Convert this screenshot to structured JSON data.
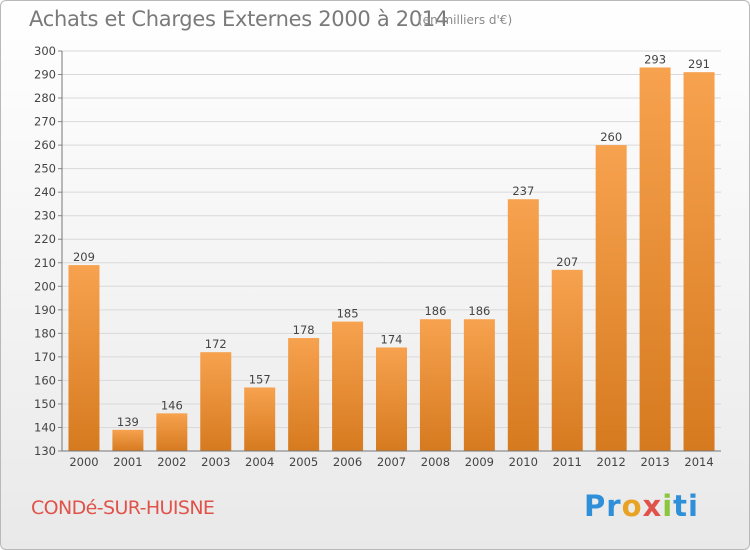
{
  "header": {
    "title": "Achats et Charges Externes 2000 à 2014",
    "unit_note": "(en milliers d'€)"
  },
  "footer": {
    "city": "CONDé-SUR-HUISNE",
    "logo_parts": [
      "Pr",
      "o",
      "x",
      "i",
      "ti"
    ]
  },
  "colors": {
    "bar_light": "#f7a24f",
    "bar_dark": "#d67a1f",
    "grid": "#d9d9d9",
    "axis_text": "#444444",
    "title": "#7a7a7a",
    "city": "#e0534a"
  },
  "chart_data": {
    "type": "bar",
    "title": "Achats et Charges Externes 2000 à 2014",
    "subtitle": "(en milliers d'€)",
    "categories": [
      "2000",
      "2001",
      "2002",
      "2003",
      "2004",
      "2005",
      "2006",
      "2007",
      "2008",
      "2009",
      "2010",
      "2011",
      "2012",
      "2013",
      "2014"
    ],
    "values": [
      209,
      139,
      146,
      172,
      157,
      178,
      185,
      174,
      186,
      186,
      237,
      207,
      260,
      293,
      291
    ],
    "data_labels": [
      "209",
      "139",
      "146",
      "172",
      "157",
      "178",
      "185",
      "174",
      "186",
      "186",
      "237",
      "207",
      "260",
      "293",
      "291"
    ],
    "ylim": [
      130,
      300
    ],
    "yticks": [
      130,
      140,
      150,
      160,
      170,
      180,
      190,
      200,
      210,
      220,
      230,
      240,
      250,
      260,
      270,
      280,
      290,
      300
    ],
    "xlabel": "",
    "ylabel": "",
    "grid": true,
    "legend": "none"
  }
}
